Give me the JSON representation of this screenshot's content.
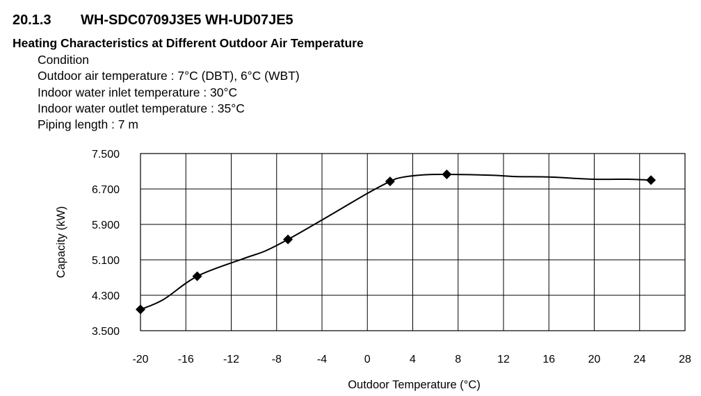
{
  "section": {
    "number": "20.1.3",
    "model": "WH-SDC0709J3E5 WH-UD07JE5",
    "subtitle": "Heating Characteristics at Different Outdoor Air Temperature"
  },
  "conditions": {
    "title": "Condition",
    "lines": [
      "Outdoor air temperature : 7°C (DBT), 6°C (WBT)",
      "Indoor water inlet temperature : 30°C",
      "Indoor water outlet temperature : 35°C",
      "Piping length : 7 m"
    ]
  },
  "chart_data": {
    "type": "line",
    "title": "",
    "xlabel": "Outdoor Temperature (°C)",
    "ylabel": "Capacity (kW)",
    "xlim": [
      -20,
      28
    ],
    "ylim": [
      3.5,
      7.5
    ],
    "x_ticks": [
      -20,
      -16,
      -12,
      -8,
      -4,
      0,
      4,
      8,
      12,
      16,
      20,
      24,
      28
    ],
    "y_ticks": [
      3.5,
      4.3,
      5.1,
      5.9,
      6.7,
      7.5
    ],
    "x_tick_labels": [
      "-20",
      "-16",
      "-12",
      "-8",
      "-4",
      "0",
      "4",
      "8",
      "12",
      "16",
      "20",
      "24",
      "28"
    ],
    "y_tick_labels": [
      "3.500",
      "4.300",
      "5.100",
      "5.900",
      "6.700",
      "7.500"
    ],
    "grid": true,
    "series": [
      {
        "color": "#000000",
        "markers": [
          {
            "x": -20,
            "y": 3.98
          },
          {
            "x": -15,
            "y": 4.73
          },
          {
            "x": -7,
            "y": 5.56
          },
          {
            "x": 2,
            "y": 6.87
          },
          {
            "x": 7,
            "y": 7.03
          },
          {
            "x": 25,
            "y": 6.9
          }
        ],
        "curve": [
          {
            "x": -20,
            "y": 3.98
          },
          {
            "x": -18,
            "y": 4.2
          },
          {
            "x": -15,
            "y": 4.73
          },
          {
            "x": -11,
            "y": 5.12
          },
          {
            "x": -9,
            "y": 5.3
          },
          {
            "x": -7,
            "y": 5.56
          },
          {
            "x": -4,
            "y": 6.0
          },
          {
            "x": 0,
            "y": 6.6
          },
          {
            "x": 2,
            "y": 6.87
          },
          {
            "x": 3,
            "y": 6.96
          },
          {
            "x": 5,
            "y": 7.02
          },
          {
            "x": 7,
            "y": 7.03
          },
          {
            "x": 11,
            "y": 7.01
          },
          {
            "x": 13,
            "y": 6.98
          },
          {
            "x": 16,
            "y": 6.97
          },
          {
            "x": 20,
            "y": 6.92
          },
          {
            "x": 23,
            "y": 6.92
          },
          {
            "x": 25,
            "y": 6.9
          }
        ]
      }
    ]
  }
}
